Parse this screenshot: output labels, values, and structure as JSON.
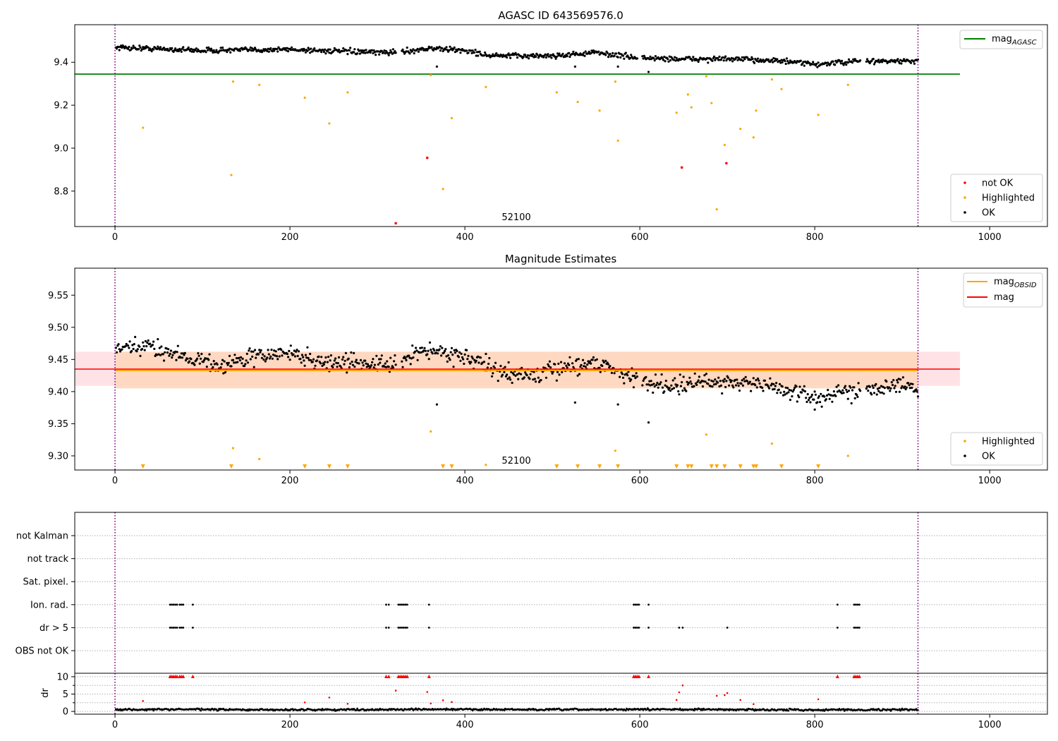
{
  "chart_data": [
    {
      "type": "scatter",
      "title": "AGASC ID 643569576.0",
      "annotation": "52100",
      "xlim": [
        -46,
        1066
      ],
      "ylim": [
        8.635,
        9.575
      ],
      "xticks": [
        0,
        200,
        400,
        600,
        800,
        1000
      ],
      "yticks": [
        8.8,
        9.0,
        9.2,
        9.4
      ],
      "vlines": [
        0,
        918
      ],
      "hline": {
        "name": "mag_AGASC",
        "label_main": "mag",
        "label_sub": "AGASC",
        "y": 9.345,
        "x_end": 966,
        "color": "#008000"
      },
      "legend_lines": [
        {
          "label_main": "mag",
          "label_sub": "AGASC",
          "color": "#008000"
        }
      ],
      "legend_points": [
        {
          "label": "not OK",
          "color": "#ff0000"
        },
        {
          "label": "Highlighted",
          "color": "#ffa500"
        },
        {
          "label": "OK",
          "color": "#000000"
        }
      ],
      "ok_trend": {
        "x": [
          0,
          100,
          200,
          300,
          330,
          360,
          400,
          430,
          500,
          550,
          600,
          650,
          700,
          750,
          800,
          850,
          918
        ],
        "y": [
          9.47,
          9.455,
          9.46,
          9.445,
          9.45,
          9.465,
          9.455,
          9.43,
          9.43,
          9.445,
          9.42,
          9.415,
          9.415,
          9.41,
          9.39,
          9.405,
          9.405
        ]
      },
      "ok_outliers": [
        {
          "x": 368,
          "y": 9.38
        },
        {
          "x": 526,
          "y": 9.38
        },
        {
          "x": 575,
          "y": 9.38
        },
        {
          "x": 610,
          "y": 9.355
        }
      ],
      "highlighted": [
        {
          "x": 32,
          "y": 9.095
        },
        {
          "x": 133,
          "y": 8.875
        },
        {
          "x": 135,
          "y": 9.31
        },
        {
          "x": 165,
          "y": 9.295
        },
        {
          "x": 217,
          "y": 9.235
        },
        {
          "x": 245,
          "y": 9.115
        },
        {
          "x": 266,
          "y": 9.26
        },
        {
          "x": 361,
          "y": 9.34
        },
        {
          "x": 375,
          "y": 8.81
        },
        {
          "x": 385,
          "y": 9.14
        },
        {
          "x": 424,
          "y": 9.285
        },
        {
          "x": 505,
          "y": 9.26
        },
        {
          "x": 529,
          "y": 9.215
        },
        {
          "x": 554,
          "y": 9.175
        },
        {
          "x": 572,
          "y": 9.31
        },
        {
          "x": 575,
          "y": 9.035
        },
        {
          "x": 642,
          "y": 9.165
        },
        {
          "x": 655,
          "y": 9.25
        },
        {
          "x": 659,
          "y": 9.19
        },
        {
          "x": 676,
          "y": 9.335
        },
        {
          "x": 682,
          "y": 9.21
        },
        {
          "x": 688,
          "y": 8.715
        },
        {
          "x": 697,
          "y": 9.015
        },
        {
          "x": 715,
          "y": 9.09
        },
        {
          "x": 730,
          "y": 9.05
        },
        {
          "x": 733,
          "y": 9.175
        },
        {
          "x": 751,
          "y": 9.32
        },
        {
          "x": 762,
          "y": 9.275
        },
        {
          "x": 804,
          "y": 9.155
        },
        {
          "x": 838,
          "y": 9.295
        }
      ],
      "not_ok": [
        {
          "x": 321,
          "y": 8.65
        },
        {
          "x": 357,
          "y": 8.955
        },
        {
          "x": 648,
          "y": 8.91
        },
        {
          "x": 699,
          "y": 8.93
        }
      ]
    },
    {
      "type": "scatter",
      "title": "Magnitude Estimates",
      "annotation": "52100",
      "xlim": [
        -46,
        1066
      ],
      "ylim": [
        9.278,
        9.592
      ],
      "xticks": [
        0,
        200,
        400,
        600,
        800,
        1000
      ],
      "yticks": [
        9.3,
        9.35,
        9.4,
        9.45,
        9.5,
        9.55
      ],
      "vlines": [
        0,
        918
      ],
      "mag": {
        "y": 9.435,
        "band": [
          9.409,
          9.462
        ],
        "x_end": 966,
        "color": "#ff0000",
        "band_color": "#ffdde2"
      },
      "mag_obsid": {
        "y": 9.433,
        "band": [
          9.405,
          9.462
        ],
        "x_start": 0,
        "x_end": 918,
        "color": "#ffa500",
        "band_color": "#ffd7bd"
      },
      "legend_lines": [
        {
          "label_main": "mag",
          "label_sub": "OBSID",
          "color": "#ffa500"
        },
        {
          "label_main": "mag",
          "label_sub": "",
          "color": "#ff0000"
        }
      ],
      "legend_points": [
        {
          "label": "Highlighted",
          "color": "#ffa500"
        },
        {
          "label": "OK",
          "color": "#000000"
        }
      ],
      "ok_trend": {
        "x": [
          0,
          40,
          80,
          120,
          160,
          200,
          240,
          280,
          320,
          350,
          380,
          400,
          440,
          480,
          520,
          550,
          580,
          600,
          640,
          680,
          720,
          760,
          800,
          840,
          880,
          918
        ],
        "y": [
          9.465,
          9.47,
          9.455,
          9.44,
          9.455,
          9.46,
          9.445,
          9.445,
          9.44,
          9.465,
          9.46,
          9.455,
          9.43,
          9.425,
          9.44,
          9.445,
          9.43,
          9.415,
          9.41,
          9.415,
          9.415,
          9.405,
          9.39,
          9.4,
          9.41,
          9.405
        ]
      },
      "ok_outliers": [
        {
          "x": 368,
          "y": 9.38
        },
        {
          "x": 526,
          "y": 9.383
        },
        {
          "x": 575,
          "y": 9.38
        },
        {
          "x": 610,
          "y": 9.352
        },
        {
          "x": 800,
          "y": 9.372
        }
      ],
      "highlighted": [
        {
          "x": 135,
          "y": 9.312
        },
        {
          "x": 165,
          "y": 9.295
        },
        {
          "x": 361,
          "y": 9.338
        },
        {
          "x": 424,
          "y": 9.286
        },
        {
          "x": 572,
          "y": 9.308
        },
        {
          "x": 676,
          "y": 9.333
        },
        {
          "x": 751,
          "y": 9.319
        },
        {
          "x": 838,
          "y": 9.3
        }
      ],
      "clipped_x": [
        32,
        133,
        217,
        245,
        266,
        375,
        385,
        505,
        529,
        554,
        575,
        642,
        655,
        659,
        682,
        688,
        697,
        715,
        730,
        733,
        762,
        804
      ]
    },
    {
      "type": "scatter",
      "xlim": [
        -46,
        1066
      ],
      "xticks": [
        0,
        200,
        400,
        600,
        800,
        1000
      ],
      "vlines": [
        0,
        918
      ],
      "categories": [
        "not Kalman",
        "not track",
        "Sat. pixel.",
        "Ion. rad.",
        "dr > 5",
        "OBS not OK"
      ],
      "flags": {
        "Ion. rad.": [
          63,
          65,
          67,
          69,
          71,
          74,
          76,
          78,
          89,
          310,
          313,
          324,
          326,
          328,
          330,
          332,
          334,
          359,
          593,
          595,
          597,
          599,
          610,
          826,
          845,
          847,
          849,
          851
        ],
        "dr > 5": [
          63,
          65,
          67,
          69,
          71,
          74,
          76,
          78,
          89,
          310,
          313,
          324,
          326,
          328,
          330,
          332,
          334,
          359,
          593,
          595,
          597,
          599,
          610,
          645,
          649,
          700,
          826,
          845,
          847,
          849,
          851
        ]
      },
      "dr": {
        "ylabel": "dr",
        "ylim": [
          -0.8,
          11
        ],
        "yticks": [
          0,
          5,
          10
        ],
        "minor_yticks": [
          2.5,
          7.5
        ],
        "baseline": {
          "x": [
            0,
            80,
            160,
            240,
            320,
            400,
            480,
            560,
            640,
            720,
            800,
            880,
            918
          ],
          "y": [
            0.5,
            0.6,
            0.45,
            0.5,
            0.55,
            0.6,
            0.5,
            0.55,
            0.6,
            0.5,
            0.45,
            0.5,
            0.5
          ]
        },
        "high": [
          {
            "x": 32,
            "y": 3.0
          },
          {
            "x": 217,
            "y": 2.6
          },
          {
            "x": 245,
            "y": 4.0
          },
          {
            "x": 266,
            "y": 2.2
          },
          {
            "x": 321,
            "y": 6.0
          },
          {
            "x": 357,
            "y": 5.6
          },
          {
            "x": 361,
            "y": 2.3
          },
          {
            "x": 375,
            "y": 3.2
          },
          {
            "x": 385,
            "y": 2.7
          },
          {
            "x": 642,
            "y": 3.3
          },
          {
            "x": 645,
            "y": 5.5
          },
          {
            "x": 649,
            "y": 7.5
          },
          {
            "x": 688,
            "y": 4.5
          },
          {
            "x": 697,
            "y": 4.7
          },
          {
            "x": 700,
            "y": 5.3
          },
          {
            "x": 715,
            "y": 3.3
          },
          {
            "x": 730,
            "y": 2.1
          },
          {
            "x": 804,
            "y": 3.5
          }
        ],
        "clipped_x": [
          63,
          65,
          67,
          69,
          71,
          74,
          76,
          78,
          89,
          310,
          313,
          324,
          326,
          328,
          330,
          332,
          334,
          359,
          593,
          595,
          597,
          599,
          610,
          826,
          845,
          847,
          849,
          851
        ]
      }
    }
  ]
}
